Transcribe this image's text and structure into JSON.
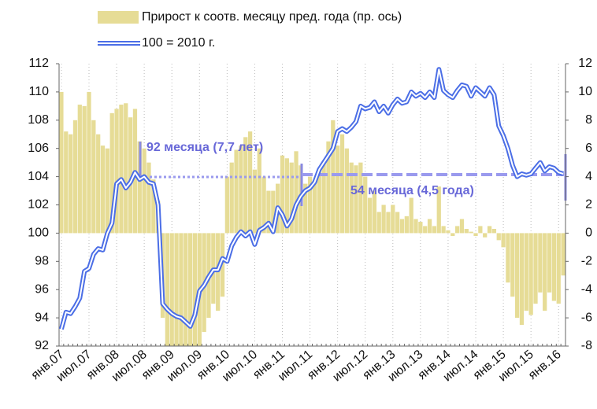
{
  "chart_data": {
    "type": "bar-line",
    "categories": [
      "янв.07",
      null,
      null,
      null,
      null,
      null,
      "июл.07",
      null,
      null,
      null,
      null,
      null,
      "янв.08",
      null,
      null,
      null,
      null,
      null,
      "июл.08",
      null,
      null,
      null,
      null,
      null,
      "янв.09",
      null,
      null,
      null,
      null,
      null,
      "июл.09",
      null,
      null,
      null,
      null,
      null,
      "янв.10",
      null,
      null,
      null,
      null,
      null,
      "июл.10",
      null,
      null,
      null,
      null,
      null,
      "янв.11",
      null,
      null,
      null,
      null,
      null,
      "июл.11",
      null,
      null,
      null,
      null,
      null,
      "янв.12",
      null,
      null,
      null,
      null,
      null,
      "июл.12",
      null,
      null,
      null,
      null,
      null,
      "янв.13",
      null,
      null,
      null,
      null,
      null,
      "июл.13",
      null,
      null,
      null,
      null,
      null,
      "янв.14",
      null,
      null,
      null,
      null,
      null,
      "июл.14",
      null,
      null,
      null,
      null,
      null,
      "янв.15",
      null,
      null,
      null,
      null,
      null,
      "июл.15",
      null,
      null,
      null,
      null,
      null,
      "янв.16",
      null
    ],
    "series": [
      {
        "name": "Прирост к соотв. месяцу пред. года (пр. ось)",
        "type": "bar",
        "axis": "y2",
        "color": "#e6dc96",
        "values": [
          10,
          7.2,
          7.0,
          8.0,
          9.1,
          9.0,
          10.0,
          8.0,
          7.0,
          6.2,
          6.0,
          8.5,
          8.8,
          9.1,
          9.2,
          8.2,
          8.8,
          6.5,
          6.0,
          5.0,
          3.8,
          2.3,
          -6.0,
          -8.0,
          -8,
          -8,
          -8,
          -8,
          -8,
          -8,
          -8,
          -7.0,
          -6.0,
          -5.0,
          -5.5,
          -4.5,
          4.0,
          5.0,
          5.9,
          6.2,
          6.8,
          7.2,
          4.5,
          6.0,
          4.0,
          3.0,
          3.0,
          3.5,
          5.5,
          5.3,
          5.0,
          5.8,
          4.8,
          3.5,
          4.0,
          3.5,
          4.5,
          5.0,
          6.5,
          8.0,
          6.2,
          7.0,
          6.0,
          5.0,
          4.8,
          5.0,
          4.0,
          2.5,
          3.0,
          1.5,
          2.0,
          1.5,
          2.0,
          1.5,
          1.0,
          1.2,
          2.5,
          1.0,
          0.8,
          0.5,
          1.0,
          0.5,
          3.3,
          0.5,
          0.2,
          -0.2,
          0.5,
          1.0,
          0.3,
          0.1,
          -0.2,
          0.5,
          -0.3,
          0.5,
          0.3,
          -0.5,
          -1.0,
          -3.5,
          -4.5,
          -6.0,
          -6.5,
          -5.5,
          -5.8,
          -5.0,
          -4.2,
          -5.5,
          -4.2,
          -4.8,
          -5.0,
          -3.0
        ]
      },
      {
        "name": "100 = 2010 г.",
        "type": "line",
        "axis": "y",
        "color": "#4b6ee6",
        "values": [
          93.2,
          94.4,
          94.3,
          94.8,
          95.4,
          97.3,
          97.5,
          98.5,
          98.9,
          98.8,
          100.0,
          100.7,
          103.5,
          103.8,
          103.2,
          103.6,
          104.3,
          103.8,
          104.0,
          103.6,
          103.5,
          102.0,
          95.0,
          94.6,
          94.3,
          94.1,
          94.0,
          93.7,
          93.4,
          94.2,
          95.9,
          96.3,
          96.9,
          97.4,
          97.4,
          98.2,
          98.0,
          99.1,
          99.7,
          100.1,
          99.8,
          100.1,
          99.2,
          100.2,
          100.4,
          100.7,
          100.1,
          101.8,
          101.3,
          100.5,
          101.0,
          102.0,
          102.6,
          103.0,
          103.2,
          103.6,
          104.5,
          105.0,
          105.5,
          106.0,
          107.2,
          107.4,
          107.2,
          107.5,
          107.9,
          109.0,
          108.8,
          108.9,
          109.3,
          108.6,
          109.0,
          108.5,
          109.1,
          109.5,
          109.2,
          109.3,
          110.0,
          109.7,
          109.9,
          109.6,
          110.0,
          109.6,
          111.6,
          110.1,
          109.8,
          109.6,
          110.1,
          110.5,
          110.4,
          109.7,
          110.3,
          110.0,
          109.7,
          110.3,
          109.8,
          107.6,
          106.9,
          106.0,
          104.8,
          104.0,
          104.2,
          104.1,
          104.2,
          104.6,
          105.0,
          104.4,
          104.7,
          104.6,
          104.3,
          104.2
        ]
      }
    ],
    "ylim": [
      92,
      112
    ],
    "yticks": [
      92,
      94,
      96,
      98,
      100,
      102,
      104,
      106,
      108,
      110,
      112
    ],
    "y2lim": [
      -8,
      12
    ],
    "y2ticks": [
      -8,
      -6,
      -4,
      -2,
      0,
      2,
      4,
      6,
      8,
      10,
      12
    ],
    "annotations": [
      "92 месяца (7,7 лет)",
      "54 месяца (4,5 года)"
    ]
  }
}
